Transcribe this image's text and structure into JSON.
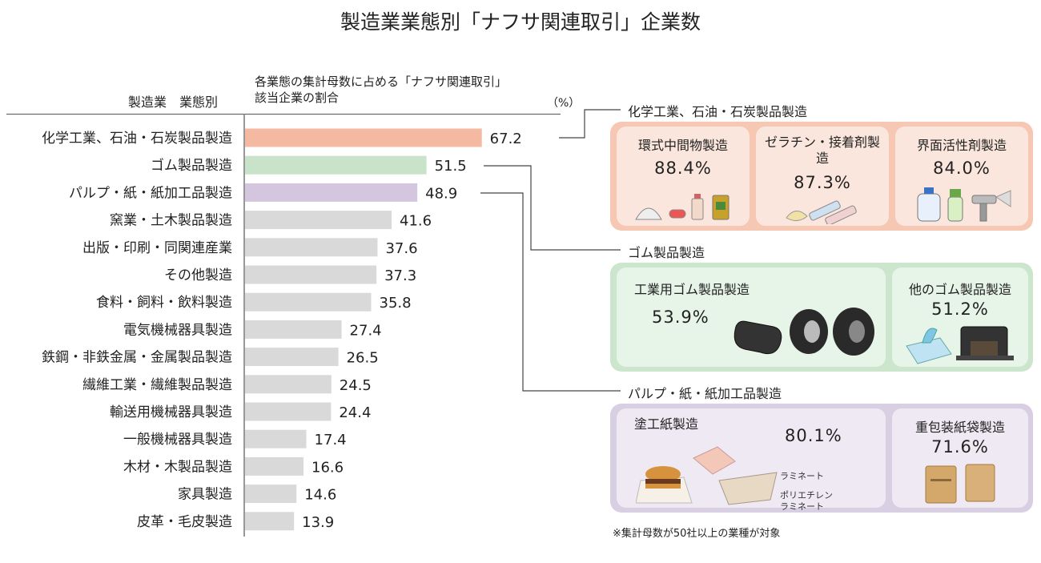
{
  "title": "製造業業態別「ナフサ関連取引」企業数",
  "chart_header": {
    "category_label": "製造業　業態別",
    "share_label_line1": "各業態の集計母数に占める「ナフサ関連取引」",
    "share_label_line2": "該当企業の割合",
    "unit": "（%）"
  },
  "colors": {
    "highlight_chemical": "#f5b8a0",
    "highlight_rubber": "#c8e3c9",
    "highlight_pulp": "#d5c6e0",
    "bar_default": "#d9d9d9",
    "panel_chemical": "#f6c7b3",
    "panel_rubber": "#cbe6cc",
    "panel_pulp": "#d9cfe3"
  },
  "chart_data": {
    "type": "bar",
    "orientation": "horizontal",
    "categories": [
      "化学工業、石油・石炭製品製造",
      "ゴム製品製造",
      "パルプ・紙・紙加工品製造",
      "窯業・土木製品製造",
      "出版・印刷・同関連産業",
      "その他製造",
      "食料・飼料・飲料製造",
      "電気機械器具製造",
      "鉄鋼・非鉄金属・金属製品製造",
      "繊維工業・繊維製品製造",
      "輸送用機械器具製造",
      "一般機械器具製造",
      "木材・木製品製造",
      "家具製造",
      "皮革・毛皮製造"
    ],
    "values": [
      67.2,
      51.5,
      48.9,
      41.6,
      37.6,
      37.3,
      35.8,
      27.4,
      26.5,
      24.5,
      24.4,
      17.4,
      16.6,
      14.6,
      13.9
    ],
    "value_labels": [
      "67.2",
      "51.5",
      "48.9",
      "41.6",
      "37.6",
      "37.3",
      "35.8",
      "27.4",
      "26.5",
      "24.5",
      "24.4",
      "17.4",
      "16.6",
      "14.6",
      "13.9"
    ],
    "highlight": [
      "chemical",
      "rubber",
      "pulp"
    ],
    "xlim": [
      0,
      100
    ],
    "grid": false,
    "legend": "none"
  },
  "panels": {
    "chemical": {
      "title": "化学工業、石油・石炭製品製造",
      "items": [
        {
          "name": "環式中間物製造",
          "pct": "88.4%"
        },
        {
          "name": "ゼラチン・接着剤製造",
          "pct": "87.3%"
        },
        {
          "name": "界面活性剤製造",
          "pct": "84.0%"
        }
      ]
    },
    "rubber": {
      "title": "ゴム製品製造",
      "items": [
        {
          "name": "工業用ゴム製品製造",
          "pct": "53.9%"
        },
        {
          "name": "他のゴム製品製造",
          "pct": "51.2%"
        }
      ]
    },
    "pulp": {
      "title": "パルプ・紙・紙加工品製造",
      "items": [
        {
          "name": "塗工紙製造",
          "pct": "80.1%"
        },
        {
          "name": "重包装紙袋製造",
          "pct": "71.6%"
        }
      ],
      "labels": {
        "laminate": "ラミネート",
        "poly1": "ポリエチレン",
        "poly2": "ラミネート"
      }
    }
  },
  "icons": [
    "powder-icon",
    "pill-icon",
    "bottle-icon",
    "bag-icon",
    "glue-tube-icon",
    "detergent-bottle-icon",
    "spray-bottle-icon",
    "spray-gun-icon",
    "rubber-part-icon",
    "tire-icon",
    "glove-box-icon",
    "rubber-mount-icon",
    "hamburger-icon",
    "wrapper-icon",
    "paper-filter-icon",
    "paper-bag-icon"
  ],
  "footnote": "※集計母数が50社以上の業種が対象"
}
